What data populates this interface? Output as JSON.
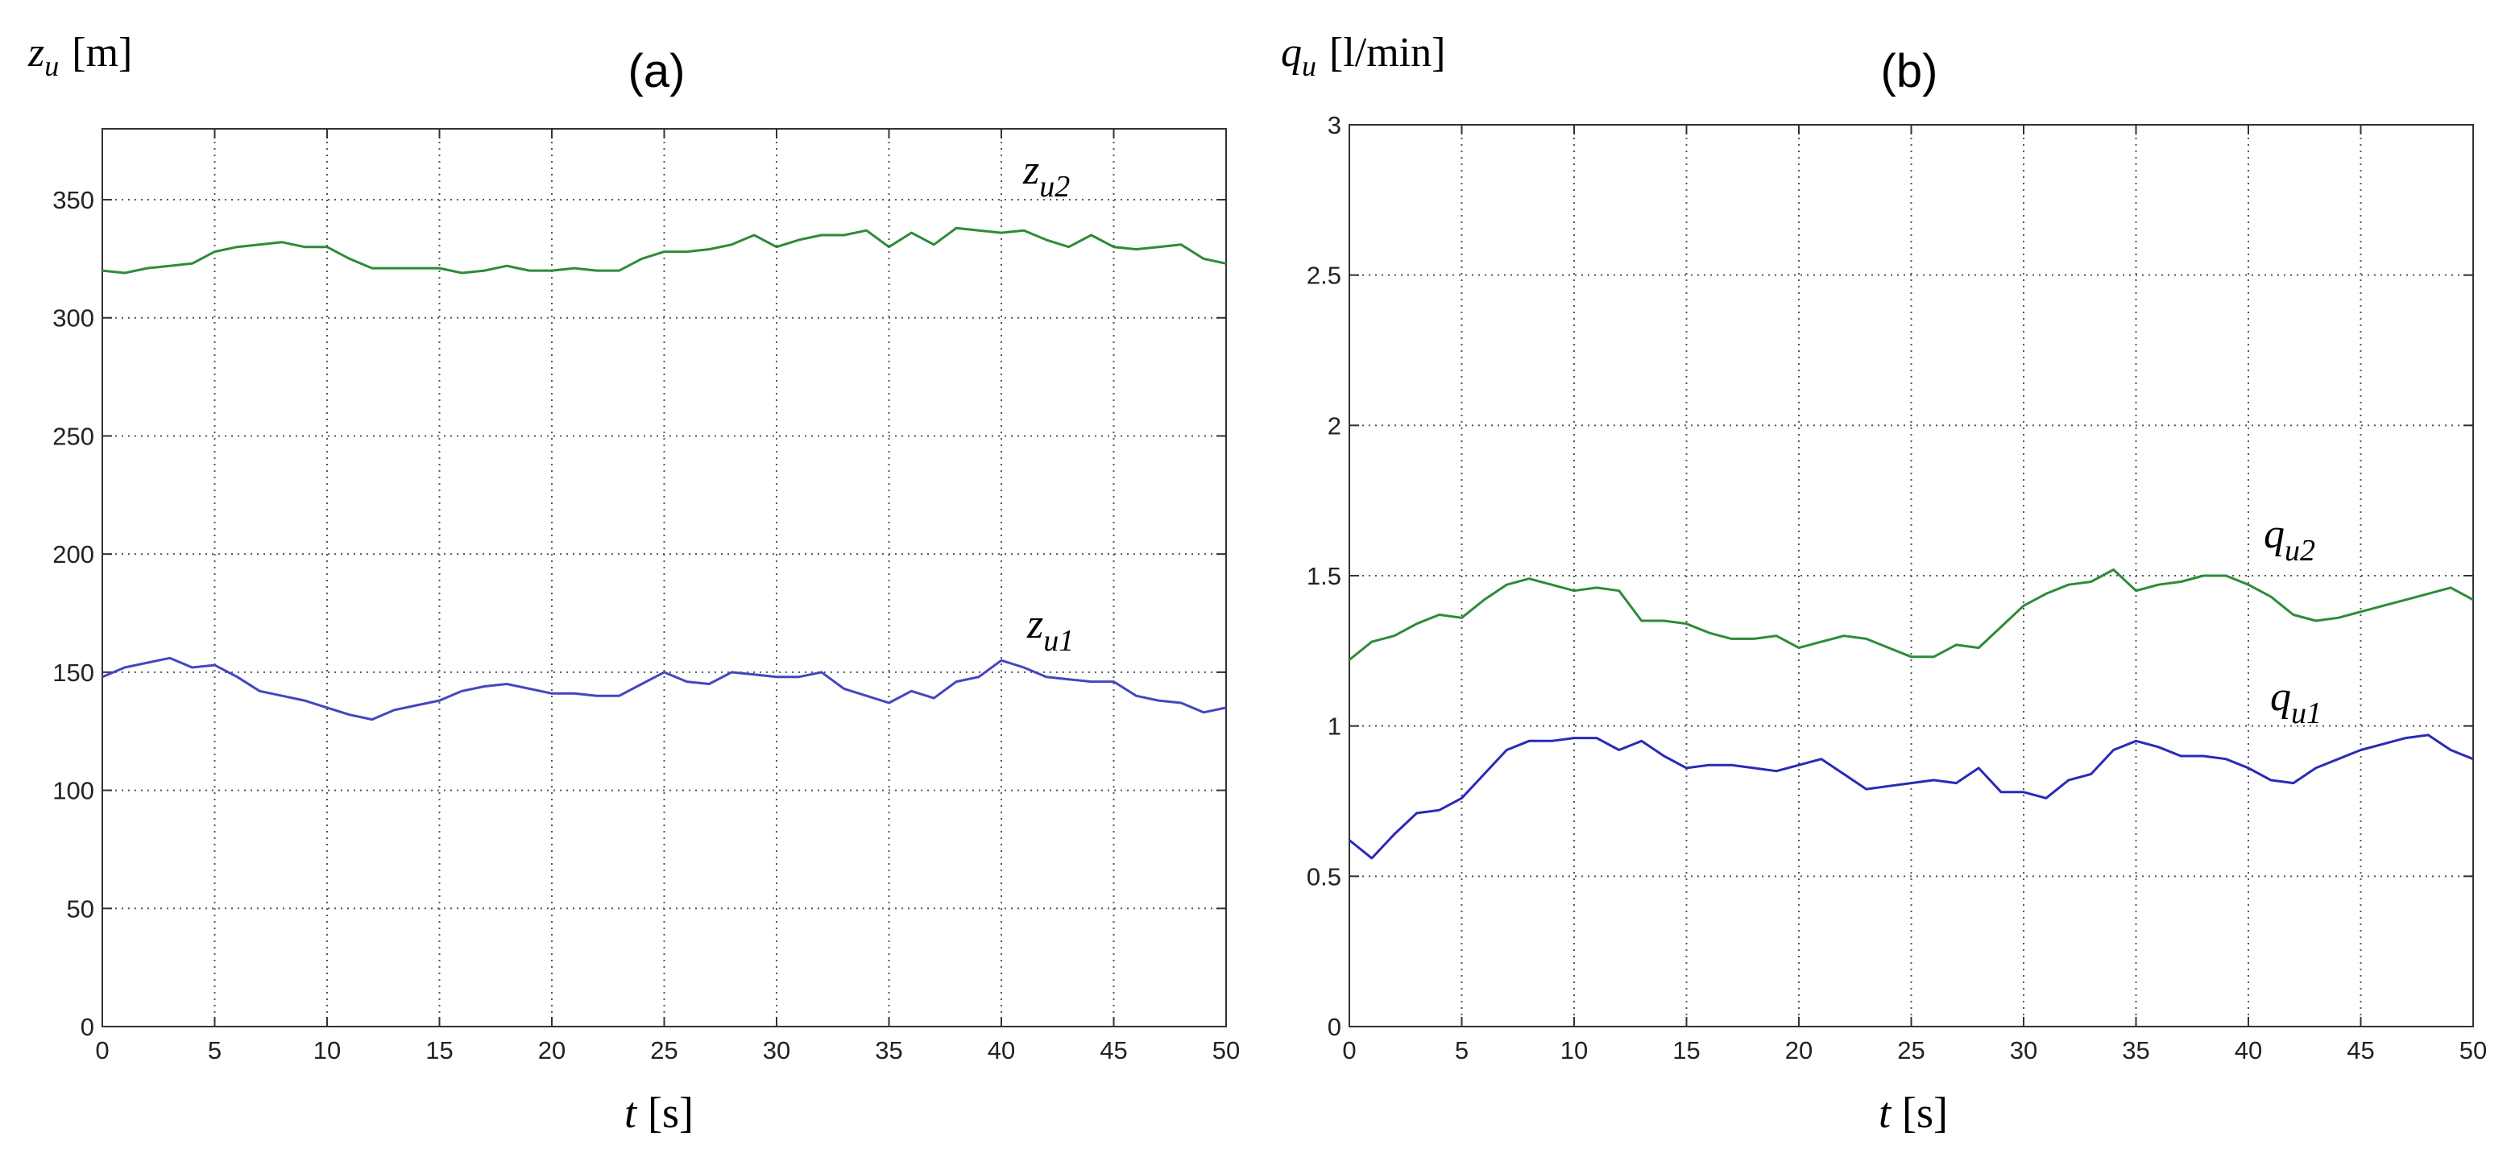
{
  "chart_data": [
    {
      "type": "line",
      "panel_label": "(a)",
      "ylabel": {
        "sym": "z",
        "sub": "u",
        "unit": "[m]"
      },
      "xlabel": {
        "sym": "t",
        "unit": "[s]"
      },
      "xlim": [
        0,
        50
      ],
      "ylim": [
        0,
        380
      ],
      "xticks": [
        0,
        5,
        10,
        15,
        20,
        25,
        30,
        35,
        40,
        45,
        50
      ],
      "yticks": [
        0,
        50,
        100,
        150,
        200,
        250,
        300,
        350
      ],
      "grid": true,
      "series": [
        {
          "name": "z_u2",
          "label_sym": "z",
          "label_sub": "u2",
          "color": "#2e8b3a",
          "x": [
            0,
            1,
            2,
            3,
            4,
            5,
            6,
            7,
            8,
            9,
            10,
            11,
            12,
            13,
            14,
            15,
            16,
            17,
            18,
            19,
            20,
            21,
            22,
            23,
            24,
            25,
            26,
            27,
            28,
            29,
            30,
            31,
            32,
            33,
            34,
            35,
            36,
            37,
            38,
            39,
            40,
            41,
            42,
            43,
            44,
            45,
            46,
            47,
            48,
            49,
            50
          ],
          "y": [
            320,
            319,
            321,
            322,
            323,
            328,
            330,
            331,
            332,
            330,
            330,
            325,
            321,
            321,
            321,
            321,
            319,
            320,
            322,
            320,
            320,
            321,
            320,
            320,
            325,
            328,
            328,
            329,
            331,
            335,
            330,
            333,
            335,
            335,
            337,
            330,
            336,
            331,
            338,
            337,
            336,
            337,
            333,
            330,
            335,
            330,
            329,
            330,
            331,
            325,
            323
          ]
        },
        {
          "name": "z_u1",
          "label_sym": "z",
          "label_sub": "u1",
          "color": "#4545c0",
          "x": [
            0,
            1,
            2,
            3,
            4,
            5,
            6,
            7,
            8,
            9,
            10,
            11,
            12,
            13,
            14,
            15,
            16,
            17,
            18,
            19,
            20,
            21,
            22,
            23,
            24,
            25,
            26,
            27,
            28,
            29,
            30,
            31,
            32,
            33,
            34,
            35,
            36,
            37,
            38,
            39,
            40,
            41,
            42,
            43,
            44,
            45,
            46,
            47,
            48,
            49,
            50
          ],
          "y": [
            148,
            152,
            154,
            156,
            152,
            153,
            148,
            142,
            140,
            138,
            135,
            132,
            130,
            134,
            136,
            138,
            142,
            144,
            145,
            143,
            141,
            141,
            140,
            140,
            145,
            150,
            146,
            145,
            150,
            149,
            148,
            148,
            150,
            143,
            140,
            137,
            142,
            139,
            146,
            148,
            155,
            152,
            148,
            147,
            146,
            146,
            140,
            138,
            137,
            133,
            135
          ]
        }
      ]
    },
    {
      "type": "line",
      "panel_label": "(b)",
      "ylabel": {
        "sym": "q",
        "sub": "u",
        "unit": "[l/min]"
      },
      "xlabel": {
        "sym": "t",
        "unit": "[s]"
      },
      "xlim": [
        0,
        50
      ],
      "ylim": [
        0,
        3
      ],
      "xticks": [
        0,
        5,
        10,
        15,
        20,
        25,
        30,
        35,
        40,
        45,
        50
      ],
      "yticks": [
        0,
        0.5,
        1,
        1.5,
        2,
        2.5,
        3
      ],
      "grid": true,
      "series": [
        {
          "name": "q_u2",
          "label_sym": "q",
          "label_sub": "u2",
          "color": "#2e8b3a",
          "x": [
            0,
            1,
            2,
            3,
            4,
            5,
            6,
            7,
            8,
            9,
            10,
            11,
            12,
            13,
            14,
            15,
            16,
            17,
            18,
            19,
            20,
            21,
            22,
            23,
            24,
            25,
            26,
            27,
            28,
            29,
            30,
            31,
            32,
            33,
            34,
            35,
            36,
            37,
            38,
            39,
            40,
            41,
            42,
            43,
            44,
            45,
            46,
            47,
            48,
            49,
            50
          ],
          "y": [
            1.22,
            1.28,
            1.3,
            1.34,
            1.37,
            1.36,
            1.42,
            1.47,
            1.49,
            1.47,
            1.45,
            1.46,
            1.45,
            1.35,
            1.35,
            1.34,
            1.31,
            1.29,
            1.29,
            1.3,
            1.26,
            1.28,
            1.3,
            1.29,
            1.26,
            1.23,
            1.23,
            1.27,
            1.26,
            1.33,
            1.4,
            1.44,
            1.47,
            1.48,
            1.52,
            1.45,
            1.47,
            1.48,
            1.5,
            1.5,
            1.47,
            1.43,
            1.37,
            1.35,
            1.36,
            1.38,
            1.4,
            1.42,
            1.44,
            1.46,
            1.42
          ]
        },
        {
          "name": "q_u1",
          "label_sym": "q",
          "label_sub": "u1",
          "color": "#2a2ab8",
          "x": [
            0,
            1,
            2,
            3,
            4,
            5,
            6,
            7,
            8,
            9,
            10,
            11,
            12,
            13,
            14,
            15,
            16,
            17,
            18,
            19,
            20,
            21,
            22,
            23,
            24,
            25,
            26,
            27,
            28,
            29,
            30,
            31,
            32,
            33,
            34,
            35,
            36,
            37,
            38,
            39,
            40,
            41,
            42,
            43,
            44,
            45,
            46,
            47,
            48,
            49,
            50
          ],
          "y": [
            0.62,
            0.56,
            0.64,
            0.71,
            0.72,
            0.76,
            0.84,
            0.92,
            0.95,
            0.95,
            0.96,
            0.96,
            0.92,
            0.95,
            0.9,
            0.86,
            0.87,
            0.87,
            0.86,
            0.85,
            0.87,
            0.89,
            0.84,
            0.79,
            0.8,
            0.81,
            0.82,
            0.81,
            0.86,
            0.78,
            0.78,
            0.76,
            0.82,
            0.84,
            0.92,
            0.95,
            0.93,
            0.9,
            0.9,
            0.89,
            0.86,
            0.82,
            0.81,
            0.86,
            0.89,
            0.92,
            0.94,
            0.96,
            0.97,
            0.92,
            0.89
          ]
        }
      ]
    }
  ]
}
